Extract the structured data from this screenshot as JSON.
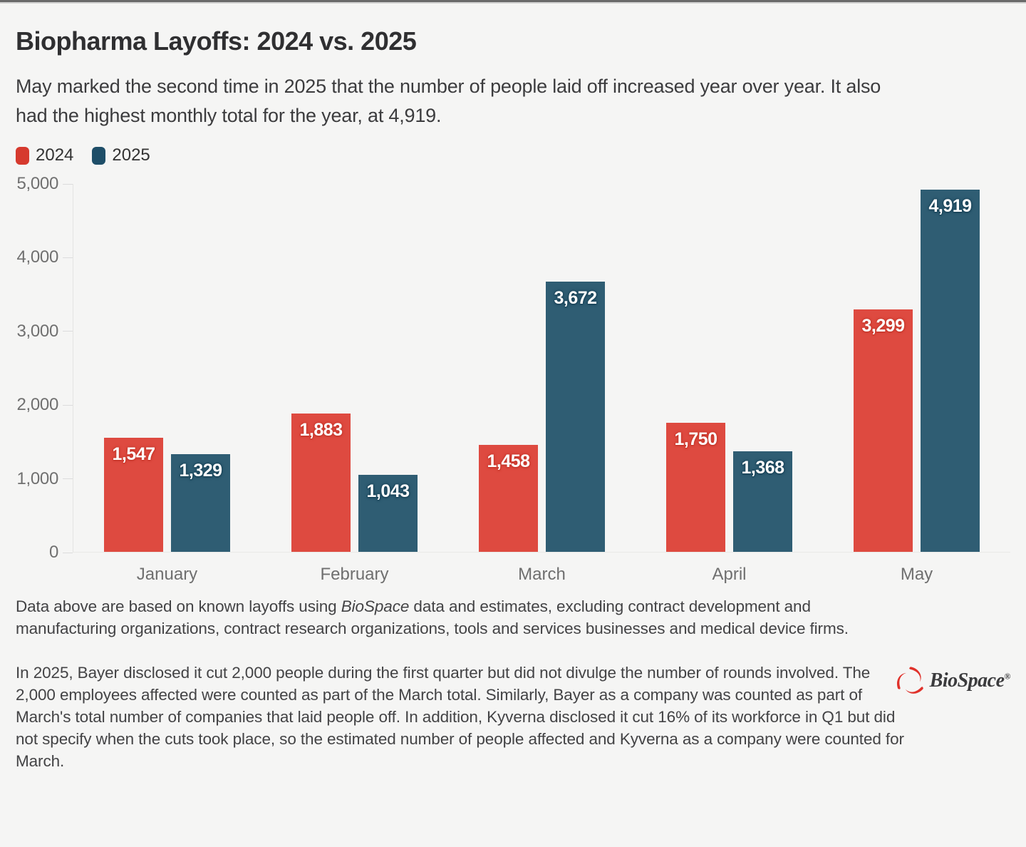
{
  "header": {
    "title": "Biopharma Layoffs: 2024 vs. 2025",
    "subtitle": "May marked the second time in 2025 that the number of people laid off increased year over year. It also had the highest monthly total for the year, at 4,919."
  },
  "colors": {
    "background": "#f5f5f4",
    "topbar": "#696969",
    "red_2024": "#de4a40",
    "blue_2025": "#2f5d73",
    "legend_red": "#d63a2e",
    "legend_blue": "#1e4e68"
  },
  "legend": {
    "items": [
      {
        "label": "2024",
        "color": "#d63a2e"
      },
      {
        "label": "2025",
        "color": "#1e4e68"
      }
    ]
  },
  "chart_data": {
    "type": "bar",
    "categories": [
      "January",
      "February",
      "March",
      "April",
      "May"
    ],
    "series": [
      {
        "name": "2024",
        "color": "#de4a40",
        "label_halo": "#c33529",
        "values": [
          1547,
          1883,
          1458,
          1750,
          3299
        ],
        "labels": [
          "1,547",
          "1,883",
          "1,458",
          "1,750",
          "3,299"
        ]
      },
      {
        "name": "2025",
        "color": "#2f5d73",
        "label_halo": "#163f54",
        "values": [
          1329,
          1043,
          3672,
          1368,
          4919
        ],
        "labels": [
          "1,329",
          "1,043",
          "3,672",
          "1,368",
          "4,919"
        ]
      }
    ],
    "title": "Biopharma Layoffs: 2024 vs. 2025",
    "xlabel": "",
    "ylabel": "",
    "ylim": [
      0,
      5000
    ],
    "ytick_values": [
      5000,
      4000,
      3000,
      2000,
      1000,
      0
    ],
    "ytick_labels": [
      "5,000",
      "4,000",
      "3,000",
      "2,000",
      "1,000",
      "0"
    ],
    "grid": "off",
    "legend_position": "top-left"
  },
  "footnotes": {
    "fn1_prefix": "Data above are based on known layoffs using ",
    "fn1_italic": "BioSpace",
    "fn1_suffix": " data and estimates, excluding contract development and manufacturing organizations, contract research organizations, tools and services businesses and medical device firms.",
    "fn2": "In 2025, Bayer disclosed it cut 2,000 people during the first quarter but did not divulge the number of rounds involved. The 2,000 employees affected were counted as part of the March total. Similarly, Bayer as a company was counted as part of March's total number of companies that laid people off. In addition, Kyverna disclosed it cut 16% of its workforce in Q1 but did not specify when the cuts took place, so the estimated number of people affected and Kyverna as a company were counted for March."
  },
  "logo": {
    "text": "BioSpace",
    "reg": "®"
  }
}
